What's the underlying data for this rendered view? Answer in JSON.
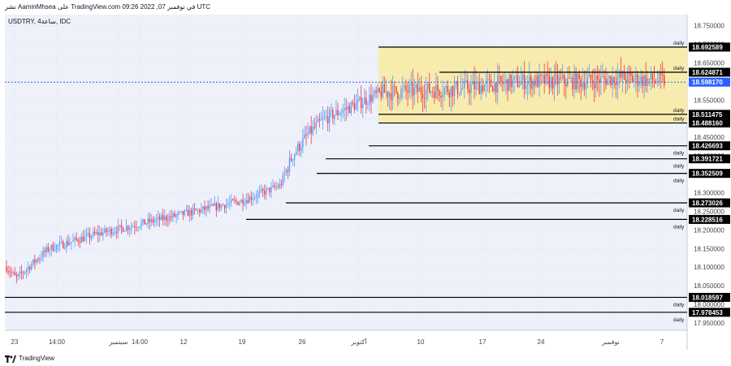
{
  "header": {
    "author_line": "نشر AaminMhsea على TradingView.com في نوفمبر 07, 2022 09:26 UTC"
  },
  "footer": {
    "brand": "TradingView",
    "logo_icon": "tradingview-logo-icon"
  },
  "chart_data": {
    "type": "candlestick",
    "symbol_label": "USDTRY, 4ساعة, IDC",
    "ylim": [
      17.93,
      18.78
    ],
    "y_ticks": [
      17.95,
      18.0,
      18.05,
      18.1,
      18.15,
      18.2,
      18.25,
      18.3,
      18.35,
      18.4,
      18.45,
      18.5,
      18.55,
      18.6,
      18.65,
      18.7,
      18.75
    ],
    "y_tick_labels": [
      "17.950000",
      "18.000000",
      "18.050000",
      "18.100000",
      "18.150000",
      "18.200000",
      "18.250000",
      "18.300000",
      "18.350000",
      "18.400000",
      "18.450000",
      "18.500000",
      "18.550000",
      "18.600000",
      "18.650000",
      "18.700000",
      "18.750000"
    ],
    "x_labels": [
      "23",
      "14:00",
      "سبتمبر",
      "14:00",
      "12",
      "19",
      "26",
      "أكتوبر",
      "10",
      "17",
      "24",
      "نوفمبر",
      "7"
    ],
    "current_price": 18.59817,
    "current_price_label": "18.598170",
    "range_box": {
      "top": 18.692589,
      "bottom": 18.48816
    },
    "levels": [
      {
        "price": 18.692589,
        "label": "18.692589",
        "tag": "daily"
      },
      {
        "price": 18.624871,
        "label": "18.624871",
        "tag": "daily"
      },
      {
        "price": 18.511475,
        "label": "18.511475",
        "tag": "daily"
      },
      {
        "price": 18.48816,
        "label": "18.488160",
        "tag": "daily"
      },
      {
        "price": 18.426693,
        "label": "18.426693",
        "tag": "daily"
      },
      {
        "price": 18.391721,
        "label": "18.391721",
        "tag": "daily"
      },
      {
        "price": 18.352509,
        "label": "18.352509",
        "tag": "daily"
      },
      {
        "price": 18.273026,
        "label": "18.273026",
        "tag": "daily"
      },
      {
        "price": 18.228516,
        "label": "18.228516",
        "tag": "daily"
      },
      {
        "price": 18.018597,
        "label": "18.018597",
        "tag": "daily"
      },
      {
        "price": 17.978453,
        "label": "17.978453",
        "tag": "daily"
      }
    ],
    "colors": {
      "up": "#5b9cf6",
      "down": "#f23645",
      "box_fill": "#f8eba0",
      "grid": "#d6dbe8",
      "plot_bg": "#eef1fa",
      "current_price_bg": "#2962ff",
      "level_label_bg": "#000000"
    },
    "grid": true
  }
}
